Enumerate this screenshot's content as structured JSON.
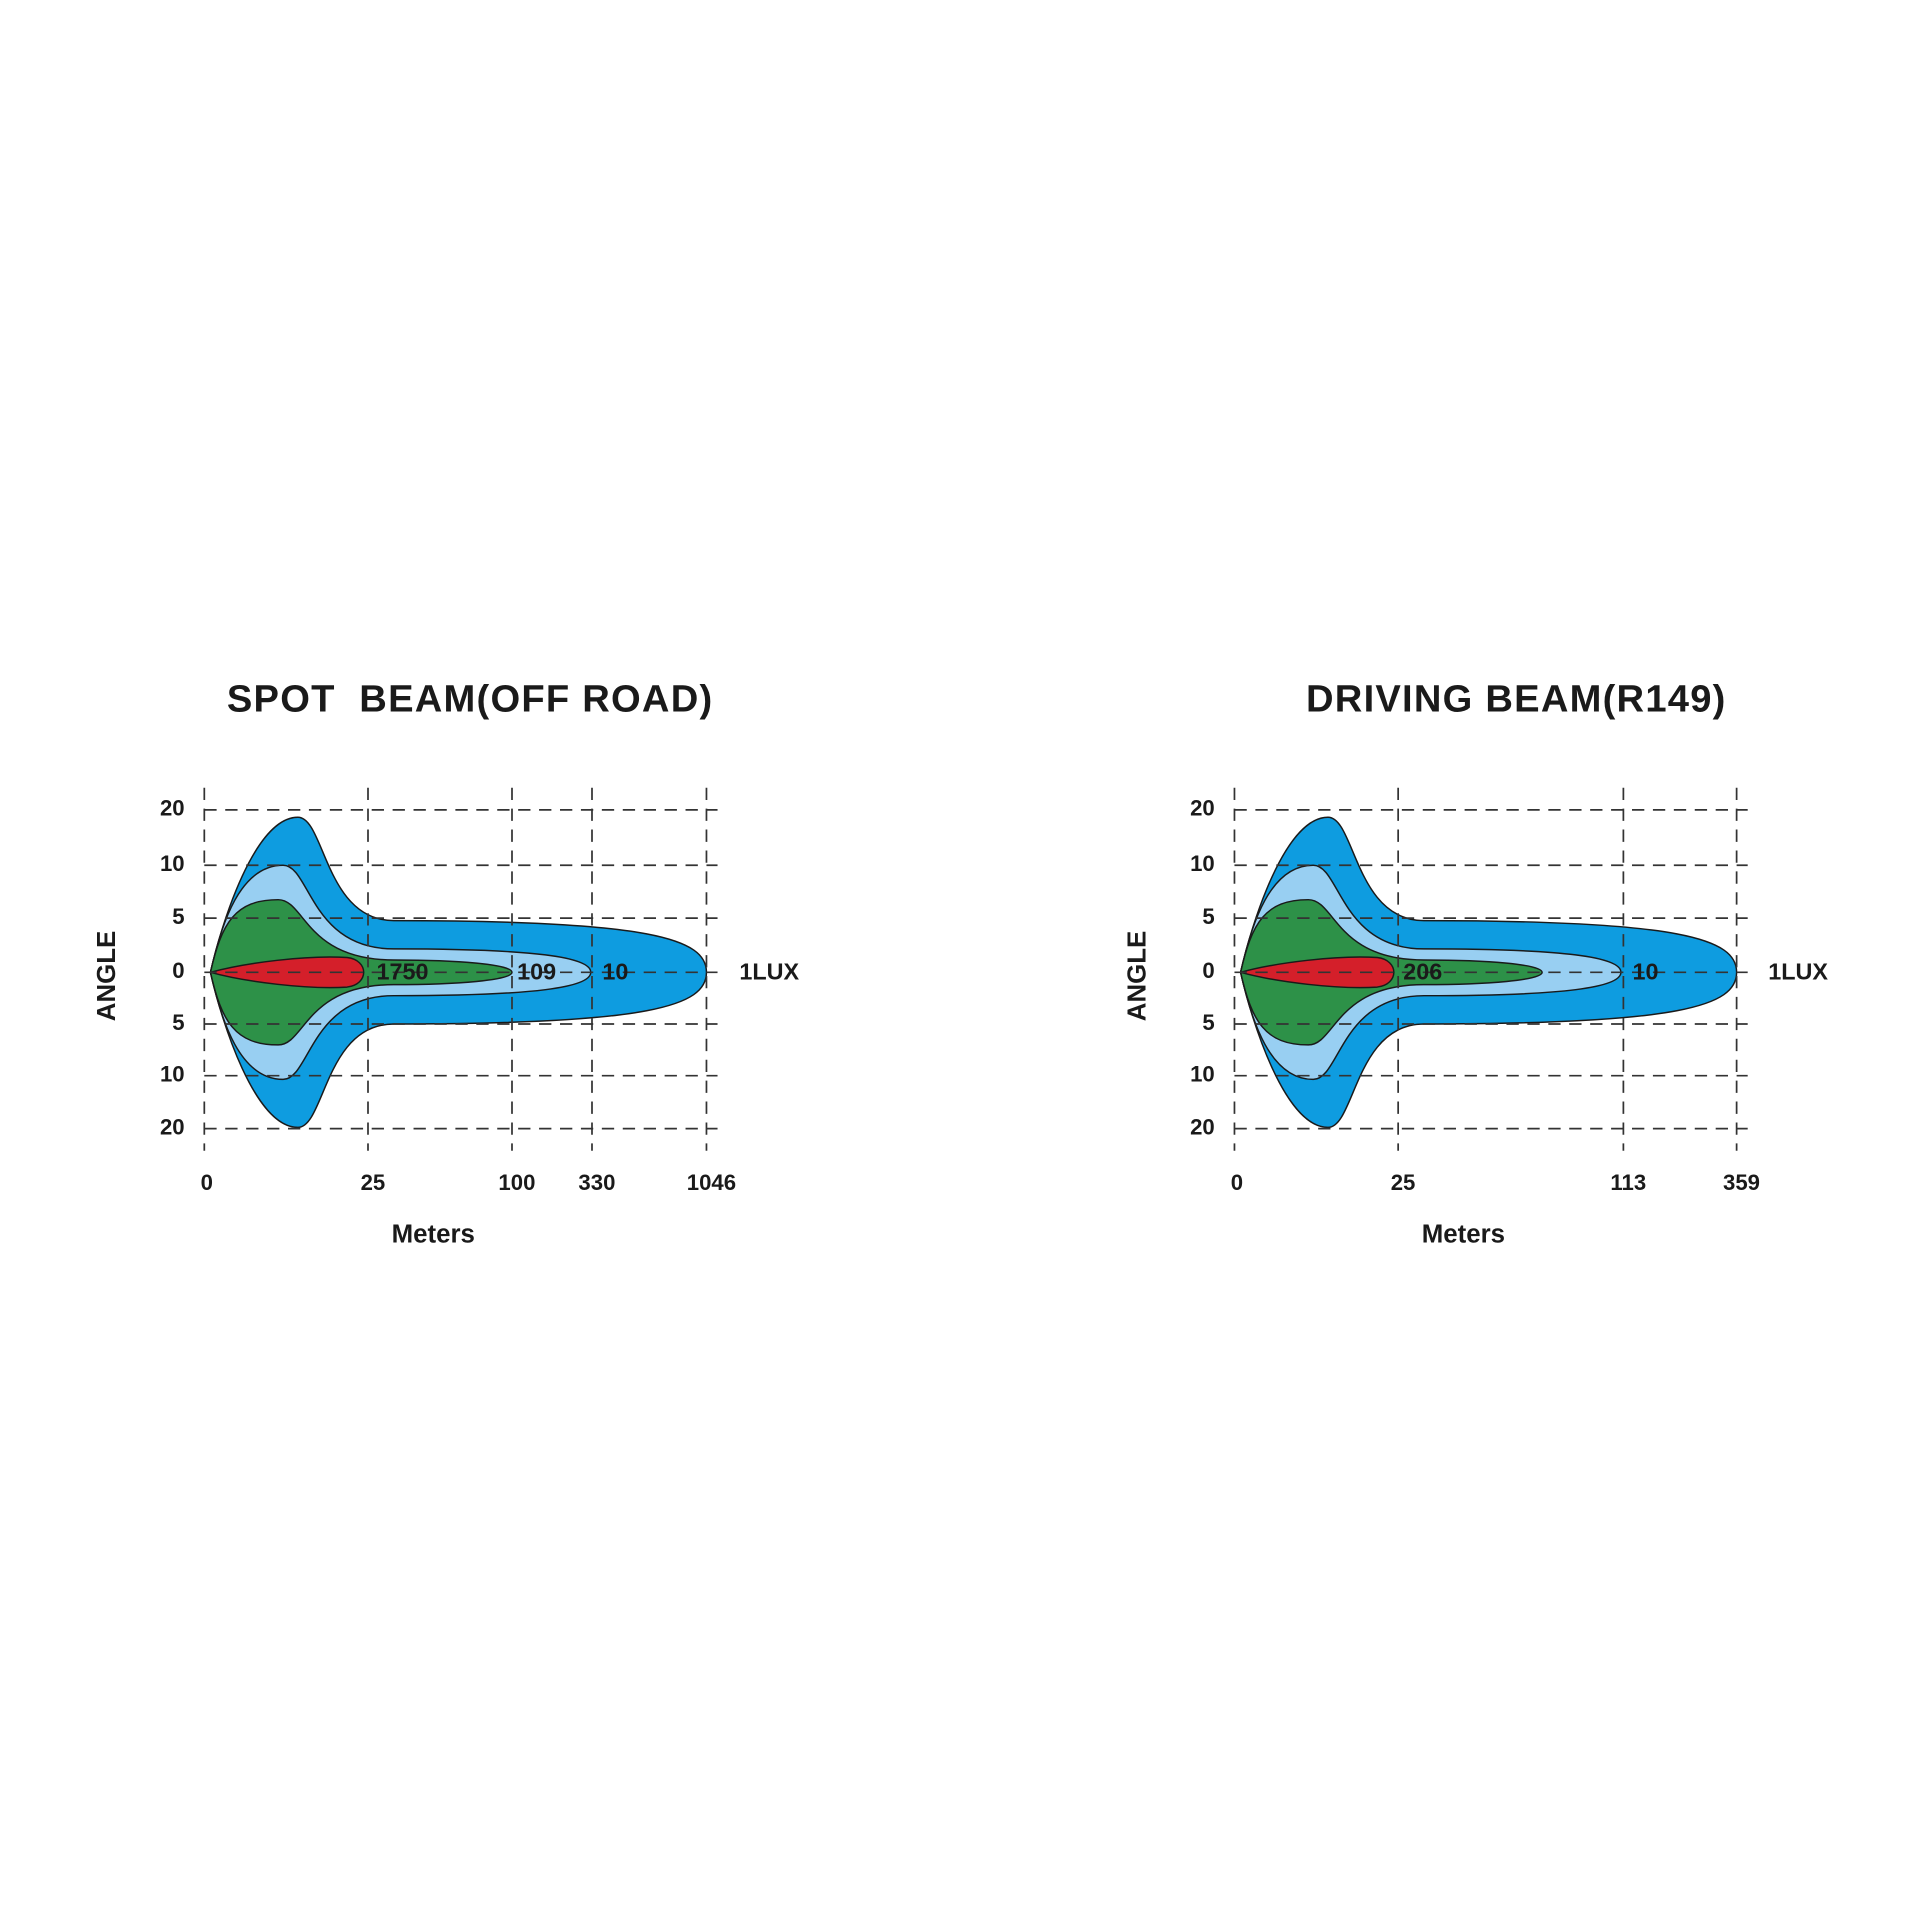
{
  "panels": [
    {
      "title": "SPOT  BEAM(OFF ROAD)",
      "y_axis_label": "ANGLE",
      "y_ticks": [
        "20",
        "10",
        "5",
        "0",
        "5",
        "10",
        "20"
      ],
      "x_ticks": [
        "0",
        "25",
        "100",
        "330",
        "1046"
      ],
      "x_axis_label": "Meters",
      "contour_labels": [
        "1750",
        "109",
        "10",
        "1LUX"
      ]
    },
    {
      "title": "DRIVING BEAM(R149)",
      "y_axis_label": "ANGLE",
      "y_ticks": [
        "20",
        "10",
        "5",
        "0",
        "5",
        "10",
        "20"
      ],
      "x_ticks": [
        "0",
        "25",
        "113",
        "359"
      ],
      "x_axis_label": "Meters",
      "contour_labels": [
        "206",
        "10",
        "1LUX"
      ]
    }
  ]
}
